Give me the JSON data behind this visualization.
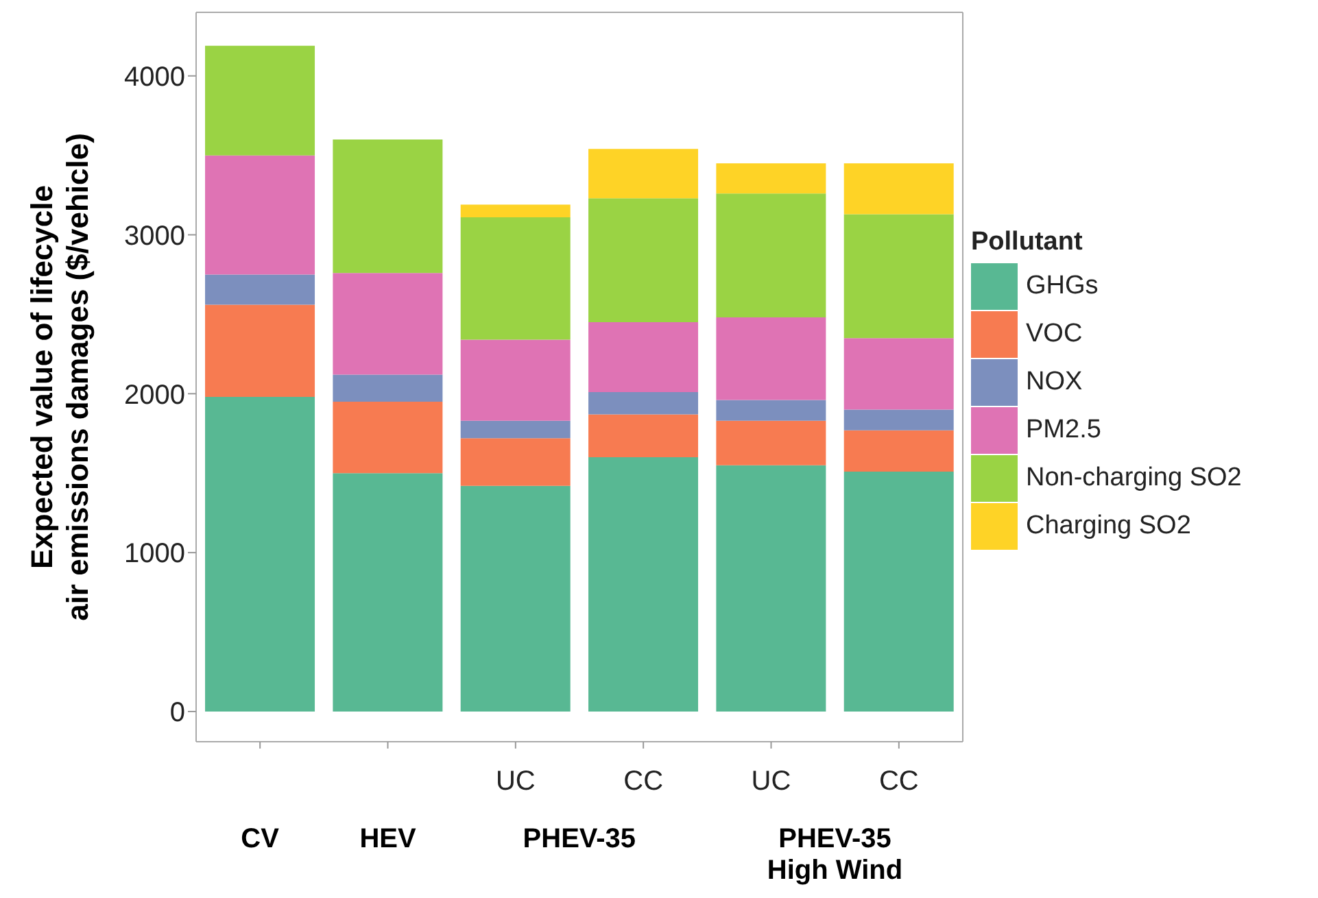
{
  "chart_data": {
    "type": "bar",
    "stacked": true,
    "ylabel": "Expected value of lifecycle\nair emissions damages ($/vehicle)",
    "legend_title": "Pollutant",
    "legend": "right",
    "grid": false,
    "categories": [
      null,
      null,
      "UC",
      "CC",
      "UC",
      "CC"
    ],
    "annotations": [
      "CV",
      "HEV",
      "PHEV-35",
      "PHEV-35\nHigh Wind"
    ],
    "ylim": [
      -190,
      4400
    ],
    "yticks": [
      0,
      1000,
      2000,
      3000,
      4000
    ],
    "series": [
      {
        "name": "GHGs",
        "color": "#58b893",
        "values": [
          1980,
          1500,
          1420,
          1600,
          1550,
          1510
        ]
      },
      {
        "name": "VOC",
        "color": "#f77b51",
        "values": [
          580,
          450,
          300,
          270,
          280,
          260
        ]
      },
      {
        "name": "NOX",
        "color": "#7c8fbe",
        "values": [
          190,
          170,
          110,
          140,
          130,
          130
        ]
      },
      {
        "name": "PM2.5",
        "color": "#df73b4",
        "values": [
          750,
          640,
          510,
          440,
          520,
          450
        ]
      },
      {
        "name": "Non-charging SO2",
        "color": "#9ad344",
        "values": [
          690,
          840,
          770,
          780,
          780,
          780
        ]
      },
      {
        "name": "Charging SO2",
        "color": "#fed326",
        "values": [
          0,
          0,
          80,
          310,
          190,
          320
        ]
      }
    ]
  }
}
